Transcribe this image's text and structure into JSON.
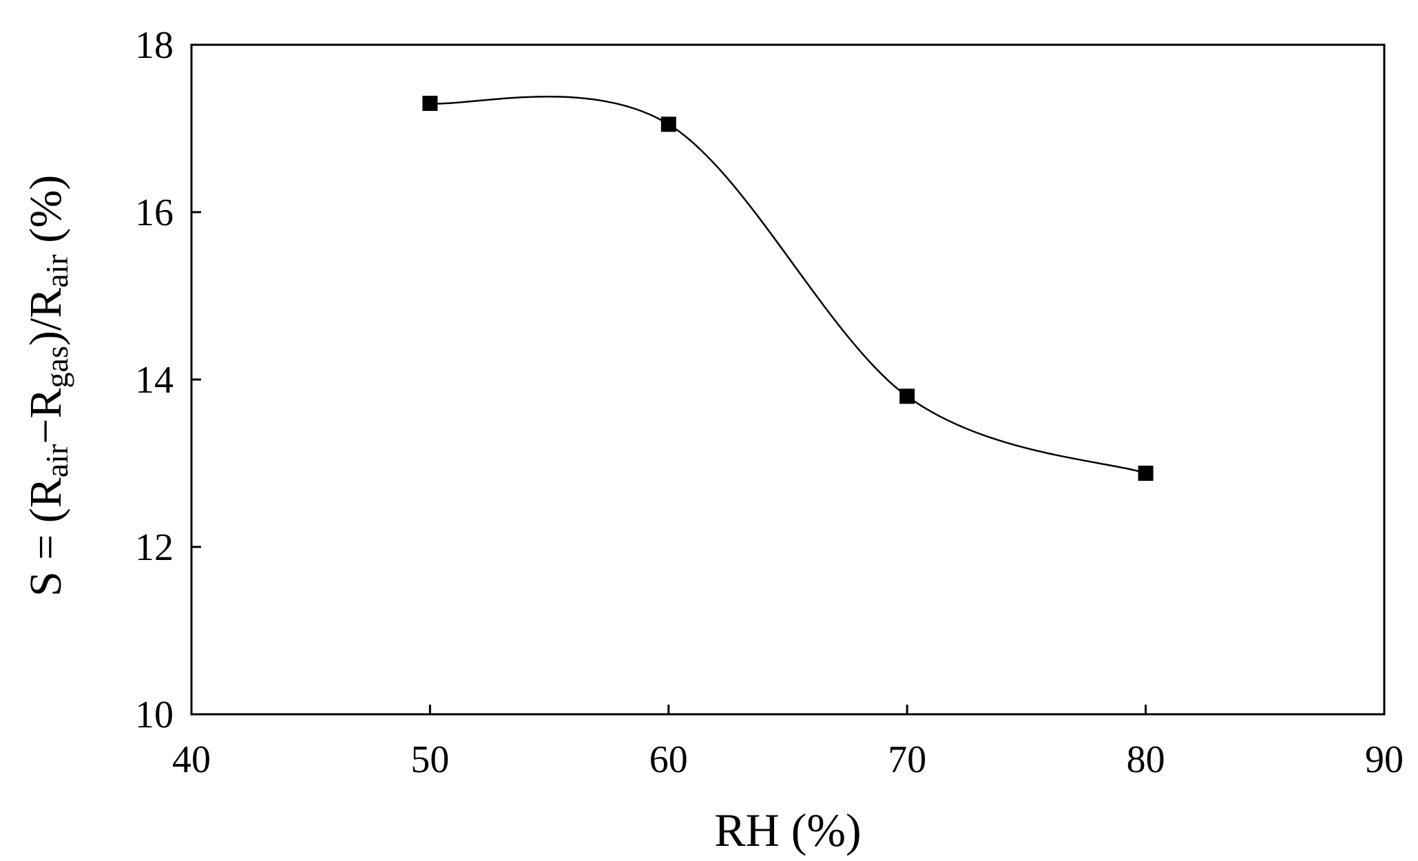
{
  "chart_data": {
    "type": "line",
    "xlabel": "RH (%)",
    "ylabel": {
      "parts": [
        {
          "text": "S = (R",
          "sub": false
        },
        {
          "text": "air",
          "sub": true
        },
        {
          "text": "−R",
          "sub": false
        },
        {
          "text": "gas",
          "sub": true
        },
        {
          "text": ")/R",
          "sub": false
        },
        {
          "text": "air",
          "sub": true
        },
        {
          "text": " (%)",
          "sub": false
        }
      ]
    },
    "xlim": [
      40,
      90
    ],
    "ylim": [
      10,
      18
    ],
    "xticks": [
      "40",
      "50",
      "60",
      "70",
      "80",
      "90"
    ],
    "yticks": [
      "10",
      "12",
      "14",
      "16",
      "18"
    ],
    "grid": false,
    "series": [
      {
        "marker": "square",
        "smooth": true,
        "color": "#000000",
        "x": [
          50,
          60,
          70,
          80
        ],
        "y": [
          17.3,
          17.05,
          13.8,
          12.88
        ]
      }
    ]
  }
}
